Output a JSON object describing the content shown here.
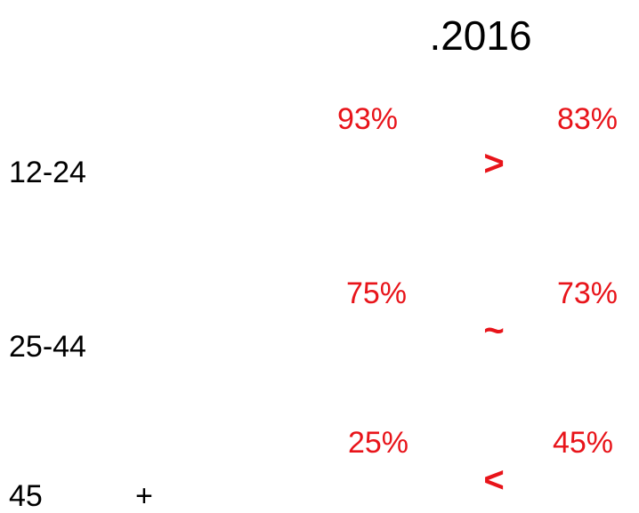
{
  "title": ".2016",
  "rows": [
    {
      "labels": [
        "12-24"
      ],
      "left": "93%",
      "symbol": ">",
      "right": "83%"
    },
    {
      "labels": [
        "25-44"
      ],
      "left": "75%",
      "symbol": "~",
      "right": "73%"
    },
    {
      "labels": [
        "45",
        "+"
      ],
      "left": "25%",
      "symbol": "<",
      "right": "45%"
    }
  ]
}
